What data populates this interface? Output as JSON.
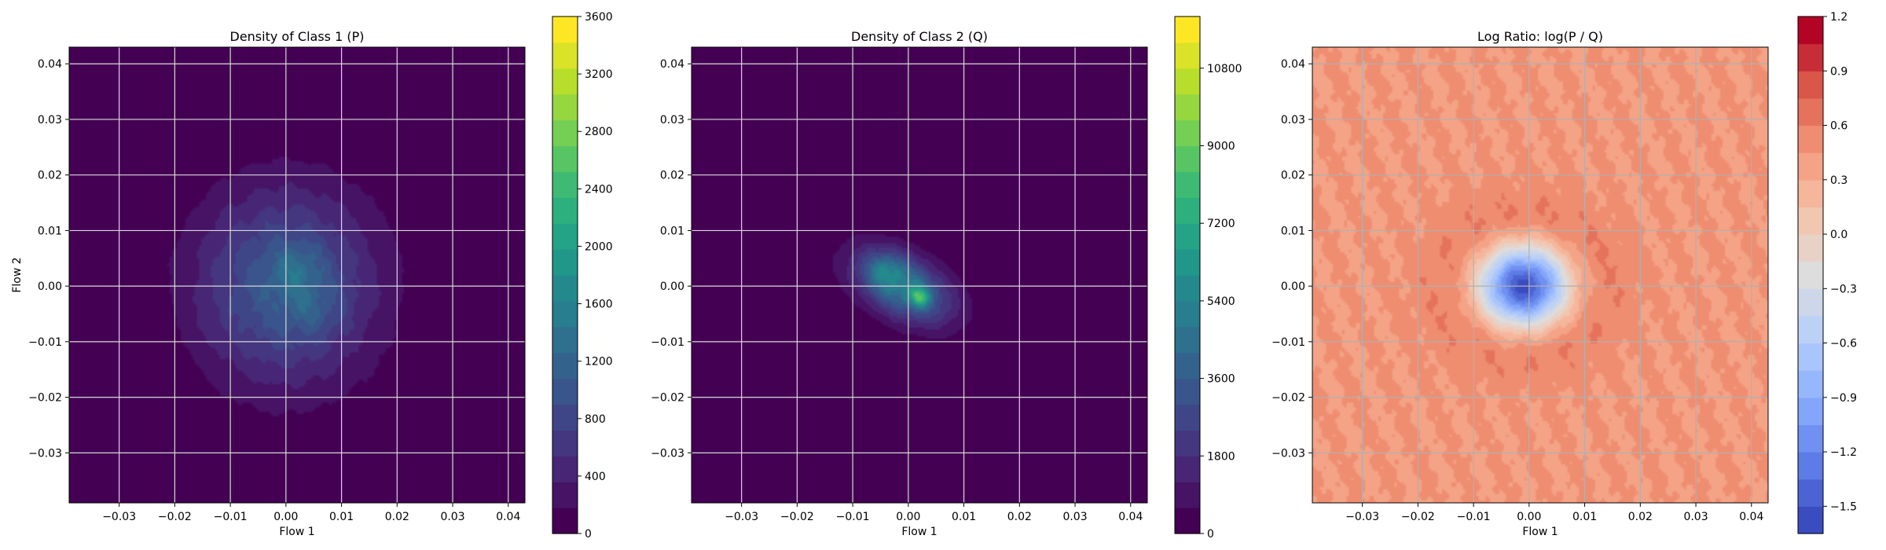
{
  "chart_data": [
    {
      "type": "heatmap",
      "title": "Density of Class 1 (P)",
      "xlabel": "Flow 1",
      "ylabel": "Flow 2",
      "xlim": [
        -0.039,
        0.043
      ],
      "ylim": [
        -0.039,
        0.043
      ],
      "xticks": [
        -0.03,
        -0.02,
        -0.01,
        0.0,
        0.01,
        0.02,
        0.03,
        0.04
      ],
      "yticks": [
        -0.03,
        -0.02,
        -0.01,
        0.0,
        0.01,
        0.02,
        0.03,
        0.04
      ],
      "xtick_labels": [
        "−0.03",
        "−0.02",
        "−0.01",
        "0.00",
        "0.01",
        "0.02",
        "0.03",
        "0.04"
      ],
      "ytick_labels": [
        "−0.03",
        "−0.02",
        "−0.01",
        "0.00",
        "0.01",
        "0.02",
        "0.03",
        "0.04"
      ],
      "grid": true,
      "colormap": "viridis",
      "colorbar": {
        "min": 0,
        "max": 3600,
        "ticks": [
          0,
          400,
          800,
          1200,
          1600,
          2000,
          2400,
          2800,
          3200,
          3600
        ],
        "tick_labels": [
          "0",
          "400",
          "800",
          "1200",
          "1600",
          "2000",
          "2400",
          "2800",
          "3200",
          "3600"
        ]
      },
      "blobs": [
        {
          "x": 0.0,
          "y": 0.0,
          "sx": 0.011,
          "sy": 0.012,
          "peak": 1100
        },
        {
          "x": 0.002,
          "y": 0.003,
          "sx": 0.003,
          "sy": 0.003,
          "peak": 350
        },
        {
          "x": 0.005,
          "y": -0.004,
          "sx": 0.003,
          "sy": 0.003,
          "peak": 250
        }
      ]
    },
    {
      "type": "heatmap",
      "title": "Density of Class 2 (Q)",
      "xlabel": "Flow 1",
      "ylabel": "",
      "xlim": [
        -0.039,
        0.043
      ],
      "ylim": [
        -0.039,
        0.043
      ],
      "xticks": [
        -0.03,
        -0.02,
        -0.01,
        0.0,
        0.01,
        0.02,
        0.03,
        0.04
      ],
      "yticks": [
        -0.03,
        -0.02,
        -0.01,
        0.0,
        0.01,
        0.02,
        0.03,
        0.04
      ],
      "xtick_labels": [
        "−0.03",
        "−0.02",
        "−0.01",
        "0.00",
        "0.01",
        "0.02",
        "0.03",
        "0.04"
      ],
      "ytick_labels": [
        "−0.03",
        "−0.02",
        "−0.01",
        "0.00",
        "0.01",
        "0.02",
        "0.03",
        "0.04"
      ],
      "grid": true,
      "colormap": "viridis",
      "colorbar": {
        "min": 0,
        "max": 12000,
        "ticks": [
          0,
          1800,
          3600,
          5400,
          7200,
          9000,
          10800
        ],
        "tick_labels": [
          "0",
          "1800",
          "3600",
          "5400",
          "7200",
          "9000",
          "10800"
        ]
      },
      "blobs": [
        {
          "x": -0.001,
          "y": 0.0,
          "sx": 0.006,
          "sy": 0.0045,
          "peak": 5200,
          "rho": -0.45
        },
        {
          "x": 0.002,
          "y": -0.002,
          "sx": 0.0012,
          "sy": 0.0012,
          "peak": 4200
        },
        {
          "x": -0.004,
          "y": 0.003,
          "sx": 0.002,
          "sy": 0.002,
          "peak": 1800
        }
      ]
    },
    {
      "type": "heatmap",
      "title": "Log Ratio: log(P / Q)",
      "xlabel": "Flow 1",
      "ylabel": "",
      "xlim": [
        -0.039,
        0.043
      ],
      "ylim": [
        -0.039,
        0.043
      ],
      "xticks": [
        -0.03,
        -0.02,
        -0.01,
        0.0,
        0.01,
        0.02,
        0.03,
        0.04
      ],
      "yticks": [
        -0.03,
        -0.02,
        -0.01,
        0.0,
        0.01,
        0.02,
        0.03,
        0.04
      ],
      "xtick_labels": [
        "−0.03",
        "−0.02",
        "−0.01",
        "0.00",
        "0.01",
        "0.02",
        "0.03",
        "0.04"
      ],
      "ytick_labels": [
        "−0.03",
        "−0.02",
        "−0.01",
        "0.00",
        "0.01",
        "0.02",
        "0.03",
        "0.04"
      ],
      "grid": true,
      "colormap": "coolwarm",
      "colorbar": {
        "min": -1.65,
        "max": 1.2,
        "ticks": [
          -1.5,
          -1.2,
          -0.9,
          -0.6,
          -0.3,
          0.0,
          0.3,
          0.6,
          0.9,
          1.2
        ],
        "tick_labels": [
          "−1.5",
          "−1.2",
          "−0.9",
          "−0.6",
          "−0.3",
          "0.0",
          "0.3",
          "0.6",
          "0.9",
          "1.2"
        ]
      },
      "background_value": 0.45,
      "ring_value": 0.65,
      "center": {
        "x": -0.001,
        "y": 0.0,
        "sx": 0.005,
        "sy": 0.0045,
        "min": -1.55
      }
    }
  ]
}
